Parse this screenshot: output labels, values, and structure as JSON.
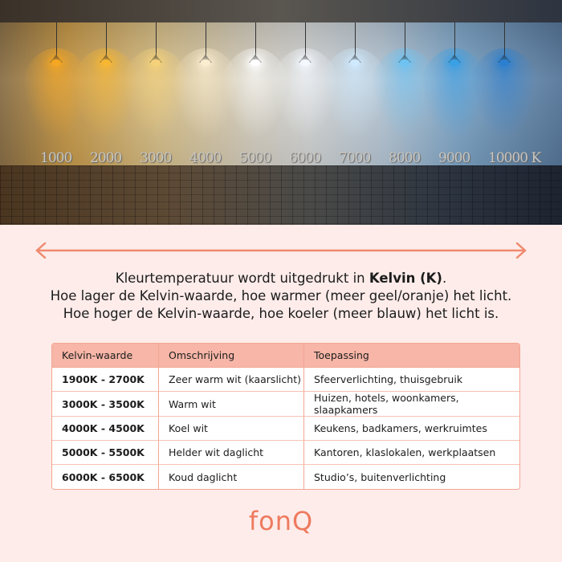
{
  "photo": {
    "kelvin_labels": [
      "1000",
      "2000",
      "3000",
      "4000",
      "5000",
      "6000",
      "7000",
      "8000",
      "9000",
      "10000 K"
    ],
    "lamp_colors": [
      "#f5a623",
      "#f7b733",
      "#f5d27a",
      "#fbeed0",
      "#ffffff",
      "#f4f8ff",
      "#cfeaff",
      "#6fc3f2",
      "#3aa0e6",
      "#2a7fd0"
    ]
  },
  "arrow": {
    "color": "#f08a6e"
  },
  "intro": {
    "line1_prefix": "Kleurtemperatuur wordt uitgedrukt in ",
    "line1_bold": "Kelvin (K)",
    "line1_suffix": ".",
    "line2": "Hoe lager de Kelvin-waarde, hoe warmer (meer geel/oranje) het licht.",
    "line3": "Hoe hoger de Kelvin-waarde, hoe koeler (meer blauw) het licht is."
  },
  "table": {
    "headers": [
      "Kelvin-waarde",
      "Omschrijving",
      "Toepassing"
    ],
    "rows": [
      [
        "1900K - 2700K",
        "Zeer warm wit (kaarslicht)",
        "Sfeerverlichting, thuisgebruik"
      ],
      [
        "3000K - 3500K",
        "Warm wit",
        "Huizen, hotels, woonkamers, slaapkamers"
      ],
      [
        "4000K - 4500K",
        "Koel wit",
        "Keukens, badkamers, werkruimtes"
      ],
      [
        "5000K - 5500K",
        "Helder wit daglicht",
        "Kantoren, klaslokalen, werkplaatsen"
      ],
      [
        "6000K - 6500K",
        "Koud daglicht",
        "Studio’s, buitenverlichting"
      ]
    ]
  },
  "logo": "fonQ"
}
